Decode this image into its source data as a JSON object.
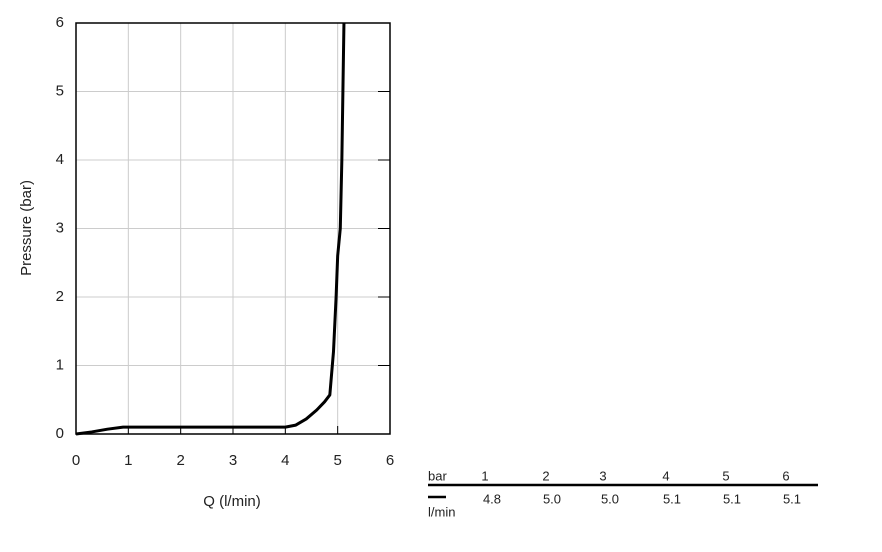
{
  "chart_data": {
    "type": "line",
    "x_label": "Q (l/min)",
    "y_label": "Pressure (bar)",
    "x": [
      0,
      0.3,
      0.6,
      0.9,
      1,
      2,
      3,
      4,
      4.2,
      4.4,
      4.6,
      4.75,
      4.85,
      4.92,
      4.97,
      5.0,
      5.05,
      5.08,
      5.1,
      5.12
    ],
    "values": [
      0,
      0.03,
      0.07,
      0.1,
      0.1,
      0.1,
      0.1,
      0.1,
      0.13,
      0.22,
      0.35,
      0.47,
      0.57,
      1.2,
      2.0,
      2.6,
      3.0,
      4.0,
      5.0,
      6
    ],
    "color": "#000000",
    "xlim": [
      0,
      6
    ],
    "ylim": [
      0,
      6
    ],
    "xticks": [
      0,
      1,
      2,
      3,
      4,
      5,
      6
    ],
    "yticks": [
      0,
      1,
      2,
      3,
      4,
      5,
      6
    ],
    "grid": true
  },
  "table": {
    "header_label": "bar",
    "headers": [
      "1",
      "2",
      "3",
      "4",
      "5",
      "6"
    ],
    "row_label": "l/min",
    "values": [
      "4.8",
      "5.0",
      "5.0",
      "5.1",
      "5.1",
      "5.1"
    ]
  }
}
